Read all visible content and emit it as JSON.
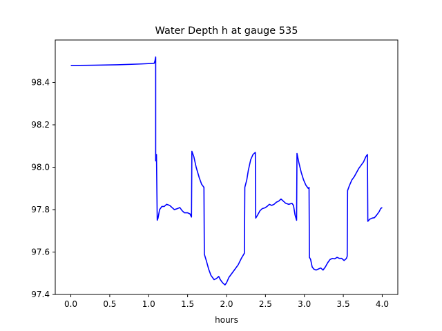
{
  "chart_data": {
    "type": "line",
    "title": "Water Depth h at gauge 535",
    "xlabel": "hours",
    "ylabel": "",
    "xlim": [
      -0.2,
      4.2
    ],
    "ylim": [
      97.4,
      98.6
    ],
    "xticks": [
      0.0,
      0.5,
      1.0,
      1.5,
      2.0,
      2.5,
      3.0,
      3.5,
      4.0
    ],
    "xtick_labels": [
      "0.0",
      "0.5",
      "1.0",
      "1.5",
      "2.0",
      "2.5",
      "3.0",
      "3.5",
      "4.0"
    ],
    "yticks": [
      97.4,
      97.6,
      97.8,
      98.0,
      98.2,
      98.4
    ],
    "ytick_labels": [
      "97.4",
      "97.6",
      "97.8",
      "98.0",
      "98.2",
      "98.4"
    ],
    "grid": false,
    "legend": "none",
    "series": [
      {
        "color": "#0000ff",
        "points": [
          [
            0.0,
            98.48
          ],
          [
            0.3,
            98.481
          ],
          [
            0.6,
            98.483
          ],
          [
            0.9,
            98.487
          ],
          [
            1.07,
            98.49
          ],
          [
            1.08,
            98.5
          ],
          [
            1.09,
            98.52
          ],
          [
            1.09,
            98.03
          ],
          [
            1.1,
            98.06
          ],
          [
            1.11,
            97.75
          ],
          [
            1.12,
            97.76
          ],
          [
            1.14,
            97.8
          ],
          [
            1.17,
            97.815
          ],
          [
            1.2,
            97.815
          ],
          [
            1.23,
            97.825
          ],
          [
            1.27,
            97.82
          ],
          [
            1.3,
            97.81
          ],
          [
            1.33,
            97.8
          ],
          [
            1.37,
            97.805
          ],
          [
            1.4,
            97.81
          ],
          [
            1.43,
            97.795
          ],
          [
            1.46,
            97.785
          ],
          [
            1.5,
            97.785
          ],
          [
            1.53,
            97.78
          ],
          [
            1.55,
            97.765
          ],
          [
            1.555,
            98.075
          ],
          [
            1.58,
            98.05
          ],
          [
            1.61,
            98.0
          ],
          [
            1.65,
            97.95
          ],
          [
            1.68,
            97.92
          ],
          [
            1.71,
            97.905
          ],
          [
            1.715,
            97.59
          ],
          [
            1.74,
            97.56
          ],
          [
            1.77,
            97.52
          ],
          [
            1.8,
            97.49
          ],
          [
            1.84,
            97.47
          ],
          [
            1.87,
            97.475
          ],
          [
            1.9,
            97.485
          ],
          [
            1.92,
            97.47
          ],
          [
            1.95,
            97.455
          ],
          [
            1.98,
            97.445
          ],
          [
            2.0,
            97.455
          ],
          [
            2.03,
            97.48
          ],
          [
            2.07,
            97.5
          ],
          [
            2.11,
            97.52
          ],
          [
            2.15,
            97.54
          ],
          [
            2.19,
            97.57
          ],
          [
            2.23,
            97.595
          ],
          [
            2.235,
            97.905
          ],
          [
            2.26,
            97.94
          ],
          [
            2.28,
            97.985
          ],
          [
            2.31,
            98.035
          ],
          [
            2.34,
            98.06
          ],
          [
            2.37,
            98.07
          ],
          [
            2.375,
            97.76
          ],
          [
            2.4,
            97.775
          ],
          [
            2.43,
            97.795
          ],
          [
            2.46,
            97.805
          ],
          [
            2.49,
            97.808
          ],
          [
            2.52,
            97.815
          ],
          [
            2.55,
            97.825
          ],
          [
            2.58,
            97.82
          ],
          [
            2.61,
            97.825
          ],
          [
            2.64,
            97.835
          ],
          [
            2.67,
            97.84
          ],
          [
            2.7,
            97.85
          ],
          [
            2.73,
            97.84
          ],
          [
            2.76,
            97.83
          ],
          [
            2.8,
            97.825
          ],
          [
            2.84,
            97.83
          ],
          [
            2.86,
            97.82
          ],
          [
            2.88,
            97.775
          ],
          [
            2.9,
            97.75
          ],
          [
            2.905,
            98.065
          ],
          [
            2.93,
            98.02
          ],
          [
            2.96,
            97.975
          ],
          [
            2.99,
            97.94
          ],
          [
            3.02,
            97.915
          ],
          [
            3.05,
            97.9
          ],
          [
            3.06,
            97.905
          ],
          [
            3.065,
            97.575
          ],
          [
            3.08,
            97.565
          ],
          [
            3.1,
            97.53
          ],
          [
            3.12,
            97.52
          ],
          [
            3.15,
            97.515
          ],
          [
            3.18,
            97.52
          ],
          [
            3.21,
            97.525
          ],
          [
            3.24,
            97.515
          ],
          [
            3.27,
            97.53
          ],
          [
            3.3,
            97.55
          ],
          [
            3.33,
            97.565
          ],
          [
            3.36,
            97.57
          ],
          [
            3.39,
            97.568
          ],
          [
            3.42,
            97.575
          ],
          [
            3.45,
            97.57
          ],
          [
            3.48,
            97.57
          ],
          [
            3.51,
            97.56
          ],
          [
            3.54,
            97.57
          ],
          [
            3.55,
            97.58
          ],
          [
            3.555,
            97.89
          ],
          [
            3.58,
            97.915
          ],
          [
            3.61,
            97.94
          ],
          [
            3.64,
            97.955
          ],
          [
            3.67,
            97.975
          ],
          [
            3.7,
            97.995
          ],
          [
            3.73,
            98.01
          ],
          [
            3.76,
            98.025
          ],
          [
            3.79,
            98.05
          ],
          [
            3.81,
            98.06
          ],
          [
            3.815,
            97.745
          ],
          [
            3.84,
            97.755
          ],
          [
            3.87,
            97.76
          ],
          [
            3.9,
            97.762
          ],
          [
            3.93,
            97.775
          ],
          [
            3.96,
            97.79
          ],
          [
            3.98,
            97.805
          ],
          [
            4.0,
            97.81
          ]
        ]
      }
    ]
  }
}
